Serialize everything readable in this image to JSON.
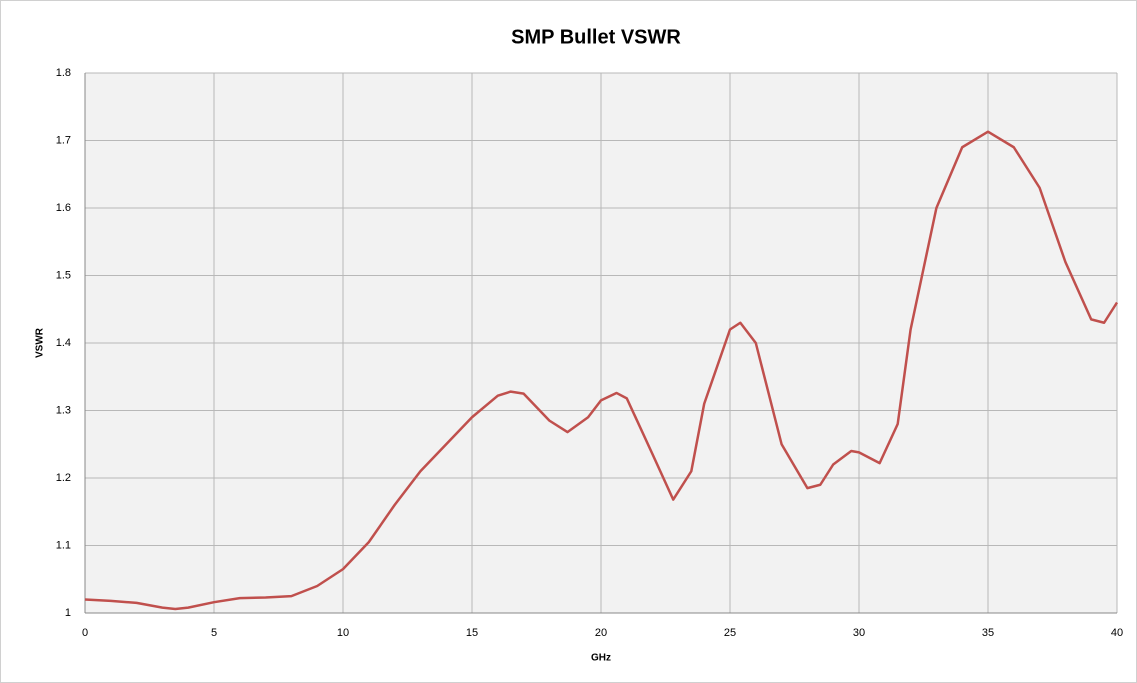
{
  "chart_data": {
    "type": "line",
    "title": "SMP Bullet VSWR",
    "x_label": "GHz",
    "y_label": "VSWR",
    "x": [
      0,
      1,
      2,
      3,
      3.5,
      4,
      5,
      6,
      7,
      8,
      9,
      10,
      11,
      12,
      13,
      14,
      15,
      16,
      16.5,
      17,
      18,
      18.7,
      19.5,
      20,
      20.6,
      21,
      22,
      22.8,
      23.5,
      24,
      25,
      25.4,
      26,
      27,
      28,
      28.5,
      29,
      29.7,
      30,
      30.8,
      31.5,
      32,
      33,
      34,
      35,
      36,
      37,
      38,
      39,
      39.5,
      40
    ],
    "series": [
      {
        "name": "VSWR",
        "color": "#c0504d",
        "values": [
          1.02,
          1.018,
          1.015,
          1.008,
          1.006,
          1.008,
          1.016,
          1.022,
          1.023,
          1.025,
          1.04,
          1.065,
          1.105,
          1.16,
          1.21,
          1.25,
          1.29,
          1.322,
          1.328,
          1.325,
          1.285,
          1.268,
          1.29,
          1.315,
          1.326,
          1.318,
          1.235,
          1.168,
          1.21,
          1.31,
          1.42,
          1.43,
          1.4,
          1.25,
          1.185,
          1.19,
          1.22,
          1.24,
          1.238,
          1.222,
          1.28,
          1.42,
          1.6,
          1.69,
          1.713,
          1.69,
          1.63,
          1.52,
          1.435,
          1.43,
          1.46
        ]
      }
    ],
    "xlim": [
      0,
      40
    ],
    "xticks": [
      0,
      5,
      10,
      15,
      20,
      25,
      30,
      35,
      40
    ],
    "ylim": [
      1,
      1.8
    ],
    "yticks": [
      1,
      1.1,
      1.2,
      1.3,
      1.4,
      1.5,
      1.6,
      1.7,
      1.8
    ],
    "grid": true
  }
}
